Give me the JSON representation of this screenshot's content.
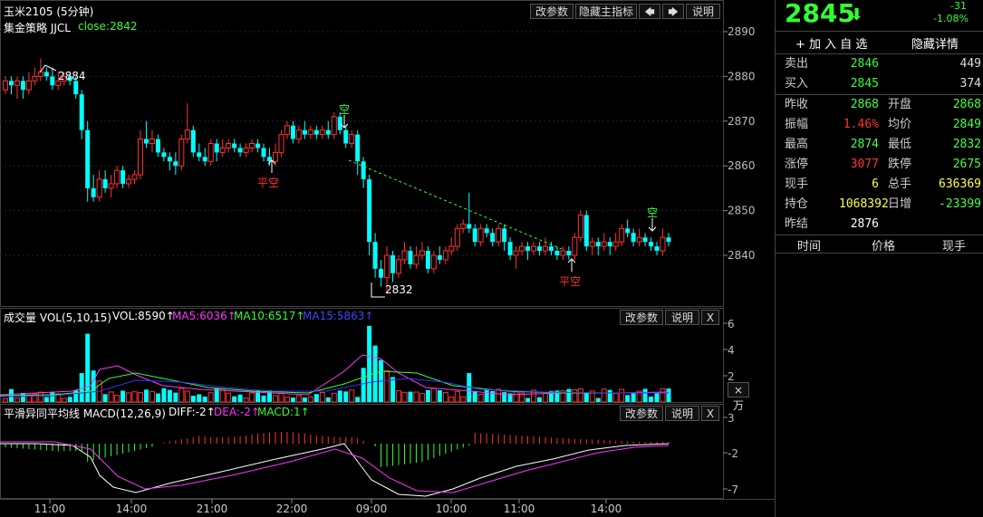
{
  "header": {
    "title": "玉米2105 (5分钟)",
    "buttons": [
      "改参数",
      "隐藏主指标"
    ],
    "arrow_left": "🡄",
    "arrow_right": "🡆",
    "help": "说明"
  },
  "strategy": {
    "name": "集金策略 JJCL",
    "close": "close:2842"
  },
  "vol_panel": {
    "title": "成交量 VOL(5,10,15)",
    "vol": "VOL:8590↑",
    "ma5": "MA5:6036↑",
    "ma10": "MA10:6517↑",
    "ma15": "MA15:5863↑",
    "btn1": "改参数",
    "btn2": "说明",
    "close": "X",
    "unit": "×万"
  },
  "macd_panel": {
    "title": "平滑异同平均线 MACD(12,26,9)",
    "diff": "DIFF:-2↑",
    "dea": "DEA:-2↑",
    "macd": "MACD:1↑",
    "btn1": "改参数",
    "btn2": "说明",
    "close": "X"
  },
  "annotations": {
    "high": "2884",
    "low": "2832",
    "kong": "空",
    "pingkong": "平空"
  },
  "quote": {
    "price": "2845",
    "change": "-31",
    "change_pct": "-1.08%",
    "add_watch": "+ 加 入 自 选",
    "hide_detail": "隐藏详情",
    "sell_label": "卖出",
    "sell_price": "2846",
    "sell_vol": "449",
    "buy_label": "买入",
    "buy_price": "2845",
    "buy_vol": "374",
    "rows": [
      {
        "k1": "昨收",
        "v1": "2868",
        "k2": "开盘",
        "v2": "2868",
        "c1": "#4f4",
        "c2": "#4f4"
      },
      {
        "k1": "振幅",
        "v1": "1.46%",
        "k2": "均价",
        "v2": "2849",
        "c1": "#f33",
        "c2": "#4f4"
      },
      {
        "k1": "最高",
        "v1": "2874",
        "k2": "最低",
        "v2": "2832",
        "c1": "#4f4",
        "c2": "#4f4"
      },
      {
        "k1": "涨停",
        "v1": "3077",
        "k2": "跌停",
        "v2": "2675",
        "c1": "#f33",
        "c2": "#4f4"
      },
      {
        "k1": "现手",
        "v1": "6",
        "k2": "总手",
        "v2": "636369",
        "c1": "#ff4",
        "c2": "#ff4"
      },
      {
        "k1": "持仓",
        "v1": "1068392",
        "k2": "日增",
        "v2": "-23399",
        "c1": "#ff4",
        "c2": "#4f4"
      }
    ],
    "settle_label": "昨结",
    "settle": "2876",
    "tabs": [
      "时间",
      "价格",
      "现手"
    ]
  },
  "colors": {
    "up": "#ff3232",
    "down": "#00ffff",
    "green": "#33ff33",
    "ma5": "#ff33ff",
    "ma10": "#33ff33",
    "ma15": "#3333ff"
  },
  "chart_data": [
    {
      "type": "candlestick",
      "title": "玉米2105 (5分钟)",
      "y_ticks": [
        2840,
        2850,
        2860,
        2870,
        2880,
        2890
      ],
      "x_ticks": [
        "11:00",
        "14:00",
        "21:00",
        "22:00",
        "09:00",
        "10:00",
        "11:00",
        "14:00"
      ],
      "ylim": [
        2830,
        2892
      ],
      "marked_high": 2884,
      "marked_low": 2832,
      "last_close": 2842
    },
    {
      "type": "bar",
      "title": "成交量 VOL(5,10,15)",
      "y_ticks": [
        2,
        4,
        6
      ],
      "unit": "×万",
      "series": [
        {
          "name": "MA5",
          "value": 6036
        },
        {
          "name": "MA10",
          "value": 6517
        },
        {
          "name": "MA15",
          "value": 5863
        }
      ],
      "last_vol": 8590
    },
    {
      "type": "bar",
      "title": "平滑异同平均线 MACD(12,26,9)",
      "y_ticks": [
        3,
        -2,
        -7
      ],
      "series": [
        {
          "name": "DIFF",
          "value": -2
        },
        {
          "name": "DEA",
          "value": -2
        },
        {
          "name": "MACD",
          "value": 1
        }
      ]
    }
  ]
}
